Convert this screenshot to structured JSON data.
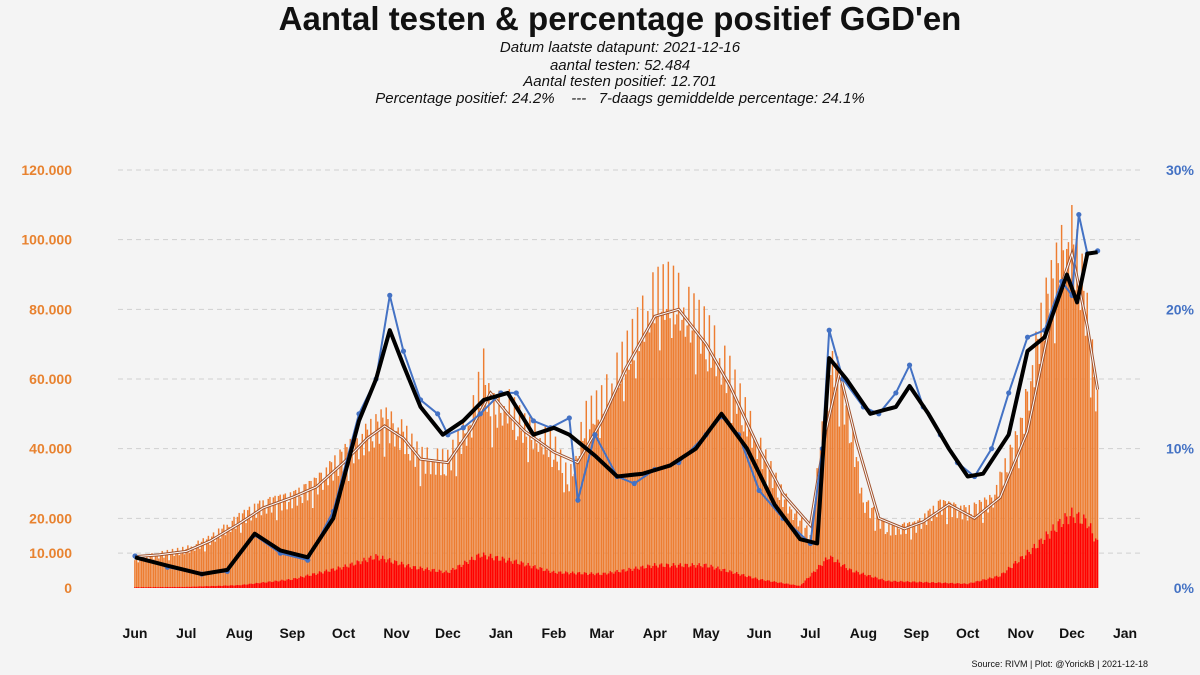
{
  "chart_data": {
    "type": "bar",
    "title": "Aantal testen & percentage positief GGD'en",
    "subtitle_lines": [
      "Datum laatste datapunt: 2021-12-16",
      "aantal testen: 52.484",
      "Aantal testen positief: 12.701",
      "Percentage positief: 24.2%    ---   7-daags gemiddelde percentage: 24.1%"
    ],
    "source": "Source: RIVM | Plot: @YorickB |  2021-12-18",
    "x_range": [
      "2020-06-01",
      "2022-01-01"
    ],
    "x_tick_labels": [
      "Jun",
      "Jul",
      "Aug",
      "Sep",
      "Oct",
      "Nov",
      "Dec",
      "Jan",
      "Feb",
      "Mar",
      "Apr",
      "May",
      "Jun",
      "Jul",
      "Aug",
      "Sep",
      "Oct",
      "Nov",
      "Dec",
      "Jan"
    ],
    "y_left": {
      "range": [
        0,
        120000
      ],
      "ticks": [
        0,
        10000,
        20000,
        40000,
        60000,
        80000,
        100000,
        120000
      ],
      "tick_labels": [
        "0",
        "10.000",
        "20.000",
        "40.000",
        "60.000",
        "80.000",
        "100.000",
        "120.000"
      ]
    },
    "y_right": {
      "range": [
        0,
        30
      ],
      "ticks": [
        0,
        10,
        20,
        30
      ],
      "tick_labels": [
        "0%",
        "10%",
        "20%",
        "30%"
      ]
    },
    "grid": true,
    "colors": {
      "tests_bars": "#ed7d31",
      "tests_avg_line": "#a0522d",
      "positive_bars": "#ff0000",
      "pct_daily": "#4472c4",
      "pct_7day": "#000000"
    },
    "series": [
      {
        "kind": "bars",
        "axis": "left",
        "points": [
          [
            "2020-06-01",
            8000
          ],
          [
            "2020-06-15",
            9500
          ],
          [
            "2020-07-01",
            11000
          ],
          [
            "2020-07-15",
            14000
          ],
          [
            "2020-08-01",
            20000
          ],
          [
            "2020-08-15",
            24000
          ],
          [
            "2020-09-01",
            26000
          ],
          [
            "2020-09-15",
            30000
          ],
          [
            "2020-10-01",
            38000
          ],
          [
            "2020-10-15",
            44000
          ],
          [
            "2020-10-25",
            48000
          ],
          [
            "2020-11-05",
            44000
          ],
          [
            "2020-11-15",
            37000
          ],
          [
            "2020-12-01",
            36000
          ],
          [
            "2020-12-15",
            48000
          ],
          [
            "2020-12-22",
            62000
          ],
          [
            "2020-12-26",
            50000
          ],
          [
            "2021-01-05",
            52000
          ],
          [
            "2021-01-15",
            45000
          ],
          [
            "2021-02-01",
            40000
          ],
          [
            "2021-02-10",
            30000
          ],
          [
            "2021-02-20",
            48000
          ],
          [
            "2021-03-01",
            52000
          ],
          [
            "2021-03-15",
            65000
          ],
          [
            "2021-04-01",
            82000
          ],
          [
            "2021-04-10",
            84000
          ],
          [
            "2021-04-20",
            78000
          ],
          [
            "2021-05-01",
            72000
          ],
          [
            "2021-05-15",
            60000
          ],
          [
            "2021-06-01",
            40000
          ],
          [
            "2021-06-15",
            26000
          ],
          [
            "2021-07-01",
            15000
          ],
          [
            "2021-07-10",
            52000
          ],
          [
            "2021-07-15",
            65000
          ],
          [
            "2021-07-25",
            45000
          ],
          [
            "2021-08-01",
            25000
          ],
          [
            "2021-08-15",
            17000
          ],
          [
            "2021-09-01",
            18000
          ],
          [
            "2021-09-15",
            24000
          ],
          [
            "2021-10-01",
            22000
          ],
          [
            "2021-10-15",
            25000
          ],
          [
            "2021-11-01",
            45000
          ],
          [
            "2021-11-15",
            80000
          ],
          [
            "2021-11-25",
            95000
          ],
          [
            "2021-12-01",
            100000
          ],
          [
            "2021-12-08",
            85000
          ],
          [
            "2021-12-16",
            52484
          ]
        ]
      },
      {
        "kind": "line",
        "axis": "left",
        "points": [
          [
            "2020-06-01",
            9000
          ],
          [
            "2020-06-15",
            9500
          ],
          [
            "2020-07-01",
            10500
          ],
          [
            "2020-07-15",
            13500
          ],
          [
            "2020-08-01",
            18500
          ],
          [
            "2020-08-15",
            23000
          ],
          [
            "2020-09-01",
            26000
          ],
          [
            "2020-09-15",
            29000
          ],
          [
            "2020-10-01",
            36000
          ],
          [
            "2020-10-15",
            43000
          ],
          [
            "2020-10-25",
            46500
          ],
          [
            "2020-11-05",
            43000
          ],
          [
            "2020-11-15",
            37000
          ],
          [
            "2020-12-01",
            36000
          ],
          [
            "2020-12-15",
            46000
          ],
          [
            "2020-12-26",
            56000
          ],
          [
            "2021-01-05",
            50000
          ],
          [
            "2021-01-15",
            45000
          ],
          [
            "2021-02-01",
            39000
          ],
          [
            "2021-02-15",
            36000
          ],
          [
            "2021-03-01",
            48000
          ],
          [
            "2021-03-15",
            63000
          ],
          [
            "2021-04-01",
            78000
          ],
          [
            "2021-04-15",
            80000
          ],
          [
            "2021-05-01",
            70000
          ],
          [
            "2021-05-15",
            58000
          ],
          [
            "2021-06-01",
            40000
          ],
          [
            "2021-06-15",
            27000
          ],
          [
            "2021-07-01",
            18000
          ],
          [
            "2021-07-10",
            45000
          ],
          [
            "2021-07-18",
            62000
          ],
          [
            "2021-07-28",
            42000
          ],
          [
            "2021-08-10",
            20000
          ],
          [
            "2021-08-25",
            17000
          ],
          [
            "2021-09-05",
            19000
          ],
          [
            "2021-09-20",
            24000
          ],
          [
            "2021-10-05",
            20000
          ],
          [
            "2021-10-20",
            26000
          ],
          [
            "2021-11-05",
            45000
          ],
          [
            "2021-11-20",
            80000
          ],
          [
            "2021-12-01",
            96000
          ],
          [
            "2021-12-10",
            75000
          ],
          [
            "2021-12-16",
            57000
          ]
        ]
      },
      {
        "kind": "bars",
        "axis": "left",
        "points": [
          [
            "2020-06-01",
            200
          ],
          [
            "2020-07-01",
            300
          ],
          [
            "2020-08-01",
            800
          ],
          [
            "2020-09-01",
            2500
          ],
          [
            "2020-10-01",
            6000
          ],
          [
            "2020-10-20",
            9000
          ],
          [
            "2020-11-10",
            6000
          ],
          [
            "2020-12-01",
            4500
          ],
          [
            "2020-12-20",
            9500
          ],
          [
            "2021-01-10",
            7500
          ],
          [
            "2021-02-01",
            4500
          ],
          [
            "2021-03-01",
            4000
          ],
          [
            "2021-04-01",
            6500
          ],
          [
            "2021-05-01",
            6500
          ],
          [
            "2021-06-01",
            2500
          ],
          [
            "2021-06-25",
            600
          ],
          [
            "2021-07-12",
            9000
          ],
          [
            "2021-07-25",
            5000
          ],
          [
            "2021-08-15",
            2000
          ],
          [
            "2021-09-15",
            1500
          ],
          [
            "2021-10-01",
            1200
          ],
          [
            "2021-10-20",
            3500
          ],
          [
            "2021-11-10",
            12000
          ],
          [
            "2021-11-25",
            19000
          ],
          [
            "2021-12-01",
            21000
          ],
          [
            "2021-12-10",
            19000
          ],
          [
            "2021-12-16",
            12701
          ]
        ]
      },
      {
        "kind": "line",
        "axis": "right",
        "points": [
          [
            "2020-06-01",
            2.3
          ],
          [
            "2020-06-20",
            1.5
          ],
          [
            "2020-07-10",
            1.0
          ],
          [
            "2020-07-25",
            1.2
          ],
          [
            "2020-08-10",
            3.8
          ],
          [
            "2020-08-25",
            2.5
          ],
          [
            "2020-09-10",
            2.0
          ],
          [
            "2020-09-25",
            5.5
          ],
          [
            "2020-10-10",
            12.5
          ],
          [
            "2020-10-20",
            15
          ],
          [
            "2020-10-28",
            21
          ],
          [
            "2020-11-05",
            17
          ],
          [
            "2020-11-15",
            13.5
          ],
          [
            "2020-11-25",
            12.5
          ],
          [
            "2020-12-01",
            11
          ],
          [
            "2020-12-10",
            11.5
          ],
          [
            "2020-12-20",
            12.5
          ],
          [
            "2021-01-01",
            14
          ],
          [
            "2021-01-10",
            14
          ],
          [
            "2021-01-20",
            12
          ],
          [
            "2021-01-30",
            11.5
          ],
          [
            "2021-02-10",
            12.2
          ],
          [
            "2021-02-15",
            6.3
          ],
          [
            "2021-02-25",
            11
          ],
          [
            "2021-03-10",
            8
          ],
          [
            "2021-03-20",
            7.5
          ],
          [
            "2021-04-01",
            8.5
          ],
          [
            "2021-04-15",
            9
          ],
          [
            "2021-05-01",
            11
          ],
          [
            "2021-05-10",
            12.3
          ],
          [
            "2021-05-20",
            11
          ],
          [
            "2021-06-01",
            7
          ],
          [
            "2021-06-15",
            5
          ],
          [
            "2021-07-01",
            3.2
          ],
          [
            "2021-07-08",
            10
          ],
          [
            "2021-07-12",
            18.5
          ],
          [
            "2021-07-20",
            15
          ],
          [
            "2021-08-01",
            13
          ],
          [
            "2021-08-10",
            12.5
          ],
          [
            "2021-08-20",
            14
          ],
          [
            "2021-08-28",
            16
          ],
          [
            "2021-09-05",
            13
          ],
          [
            "2021-09-15",
            11
          ],
          [
            "2021-09-25",
            9
          ],
          [
            "2021-10-05",
            8
          ],
          [
            "2021-10-15",
            10
          ],
          [
            "2021-10-25",
            14
          ],
          [
            "2021-11-05",
            18
          ],
          [
            "2021-11-15",
            18.5
          ],
          [
            "2021-11-25",
            22
          ],
          [
            "2021-12-01",
            21
          ],
          [
            "2021-12-05",
            26.8
          ],
          [
            "2021-12-10",
            24
          ],
          [
            "2021-12-16",
            24.2
          ]
        ]
      },
      {
        "kind": "line",
        "axis": "right",
        "points": [
          [
            "2020-06-01",
            2.2
          ],
          [
            "2020-06-20",
            1.6
          ],
          [
            "2020-07-10",
            1.0
          ],
          [
            "2020-07-25",
            1.3
          ],
          [
            "2020-08-10",
            3.9
          ],
          [
            "2020-08-25",
            2.7
          ],
          [
            "2020-09-10",
            2.2
          ],
          [
            "2020-09-25",
            5.0
          ],
          [
            "2020-10-10",
            12
          ],
          [
            "2020-10-20",
            15
          ],
          [
            "2020-10-28",
            18.5
          ],
          [
            "2020-11-05",
            16
          ],
          [
            "2020-11-15",
            13
          ],
          [
            "2020-11-28",
            11
          ],
          [
            "2020-12-10",
            12
          ],
          [
            "2020-12-22",
            13.5
          ],
          [
            "2021-01-05",
            14
          ],
          [
            "2021-01-20",
            11
          ],
          [
            "2021-02-01",
            11.5
          ],
          [
            "2021-02-10",
            11
          ],
          [
            "2021-02-25",
            9.5
          ],
          [
            "2021-03-10",
            8
          ],
          [
            "2021-03-25",
            8.2
          ],
          [
            "2021-04-10",
            8.8
          ],
          [
            "2021-04-25",
            10
          ],
          [
            "2021-05-10",
            12.5
          ],
          [
            "2021-05-25",
            10
          ],
          [
            "2021-06-10",
            6
          ],
          [
            "2021-06-25",
            3.5
          ],
          [
            "2021-07-05",
            3.2
          ],
          [
            "2021-07-12",
            16.5
          ],
          [
            "2021-07-22",
            15
          ],
          [
            "2021-08-05",
            12.5
          ],
          [
            "2021-08-20",
            13
          ],
          [
            "2021-08-28",
            14.5
          ],
          [
            "2021-09-08",
            12.5
          ],
          [
            "2021-09-20",
            10
          ],
          [
            "2021-10-01",
            8
          ],
          [
            "2021-10-10",
            8.2
          ],
          [
            "2021-10-25",
            11
          ],
          [
            "2021-11-05",
            17
          ],
          [
            "2021-11-15",
            18
          ],
          [
            "2021-11-28",
            22.5
          ],
          [
            "2021-12-04",
            20.5
          ],
          [
            "2021-12-10",
            24
          ],
          [
            "2021-12-16",
            24.1
          ]
        ]
      }
    ]
  }
}
